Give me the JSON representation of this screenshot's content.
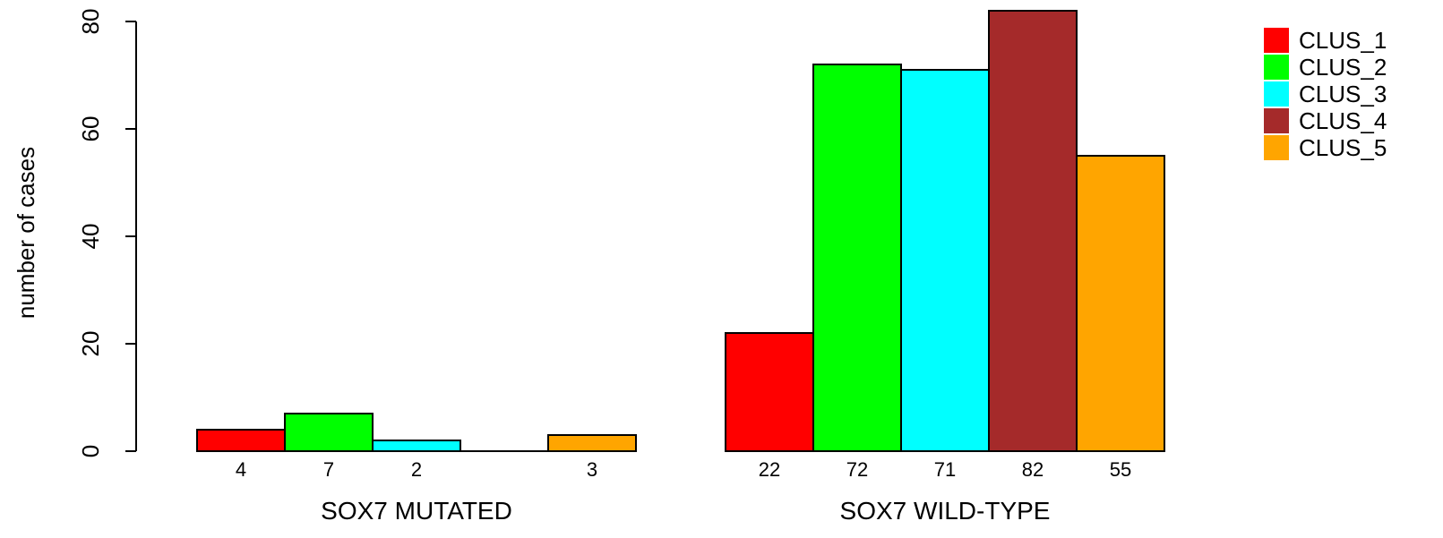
{
  "chart_data": {
    "type": "bar",
    "groups": [
      "SOX7 MUTATED",
      "SOX7 WILD-TYPE"
    ],
    "series": [
      {
        "name": "CLUS_1",
        "color": "#ff0000",
        "values": [
          4,
          22
        ]
      },
      {
        "name": "CLUS_2",
        "color": "#00ff00",
        "values": [
          7,
          72
        ]
      },
      {
        "name": "CLUS_3",
        "color": "#00ffff",
        "values": [
          2,
          71
        ]
      },
      {
        "name": "CLUS_4",
        "color": "#a52a2a",
        "values": [
          0,
          82
        ]
      },
      {
        "name": "CLUS_5",
        "color": "#ffa500",
        "values": [
          3,
          55
        ]
      }
    ],
    "bar_labels": [
      [
        "4",
        "7",
        "2",
        "",
        "3"
      ],
      [
        "22",
        "72",
        "71",
        "82",
        "55"
      ]
    ],
    "ylabel": "number of cases",
    "ylim": [
      0,
      80
    ],
    "yticks": [
      0,
      20,
      40,
      60,
      80
    ],
    "grid": false,
    "legend": "top-right"
  }
}
